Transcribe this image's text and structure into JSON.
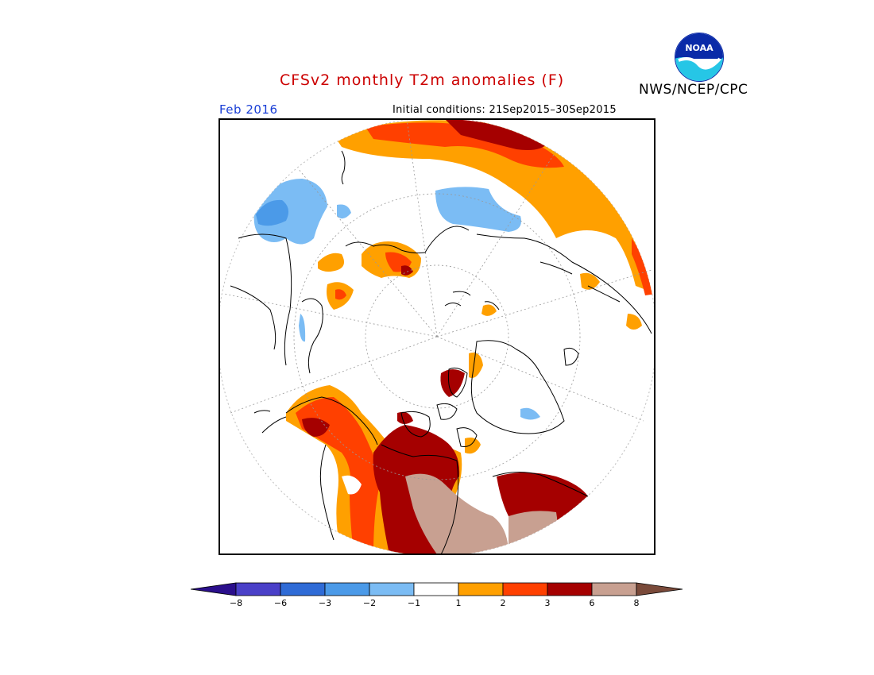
{
  "header": {
    "title": "CFSv2 monthly T2m anomalies (F)",
    "organization": "NWS/NCEP/CPC",
    "logo_text": "NOAA",
    "forecast_month": "Feb 2016",
    "initial_conditions": "Initial conditions: 21Sep2015–30Sep2015"
  },
  "colorbar": {
    "tick_labels": [
      "−8",
      "−6",
      "−3",
      "−2",
      "−1",
      "1",
      "2",
      "3",
      "6",
      "8"
    ],
    "colors": [
      "#2b0f8c",
      "#4a40c8",
      "#2f6bd6",
      "#4b9ae8",
      "#7bbcf4",
      "#ffffff",
      "#ffa000",
      "#ff4000",
      "#a50000",
      "#c8a091",
      "#7a4a3a"
    ]
  },
  "map": {
    "projection": "north polar stereographic",
    "anomaly_colors": {
      "warm1": "#ffa000",
      "warm2": "#ff4000",
      "warm3": "#a50000",
      "warm4": "#c8a091",
      "cool1": "#7bbcf4",
      "cool2": "#4b9ae8",
      "cool3": "#2f6bd6"
    }
  }
}
